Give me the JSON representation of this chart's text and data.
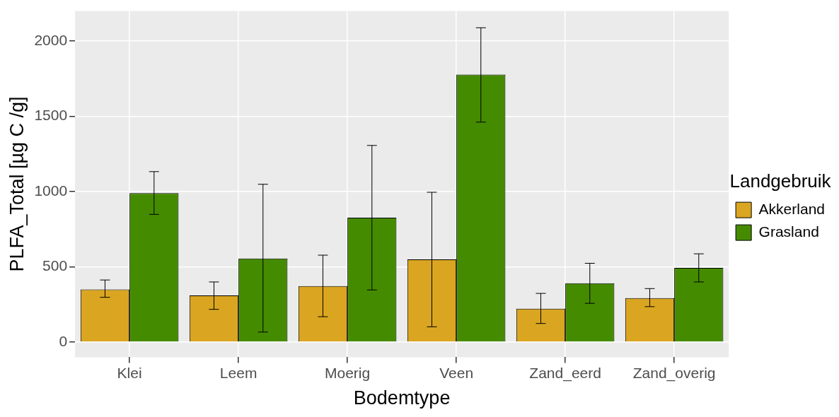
{
  "chart_data": {
    "type": "bar",
    "xlabel": "Bodemtype",
    "ylabel": "PLFA_Total [µg C /g]",
    "legend_title": "Landgebruik",
    "legend": "right",
    "grid": true,
    "categories": [
      "Klei",
      "Leem",
      "Moerig",
      "Veen",
      "Zand_eerd",
      "Zand_overig"
    ],
    "ylim": [
      -100,
      2200
    ],
    "yticks": [
      0,
      500,
      1000,
      1500,
      2000
    ],
    "series": [
      {
        "name": "Akkerland",
        "color": "#daa520",
        "values": [
          350,
          310,
          373,
          550,
          222,
          293
        ],
        "errors": [
          [
            298,
            413
          ],
          [
            218,
            400
          ],
          [
            169,
            578
          ],
          [
            102,
            996
          ],
          [
            124,
            324
          ],
          [
            236,
            356
          ]
        ]
      },
      {
        "name": "Grasland",
        "color": "#458b00",
        "values": [
          990,
          556,
          827,
          1778,
          391,
          493
        ],
        "errors": [
          [
            849,
            1133
          ],
          [
            67,
            1049
          ],
          [
            347,
            1307
          ],
          [
            1462,
            2089
          ],
          [
            258,
            524
          ],
          [
            400,
            587
          ]
        ]
      }
    ]
  }
}
